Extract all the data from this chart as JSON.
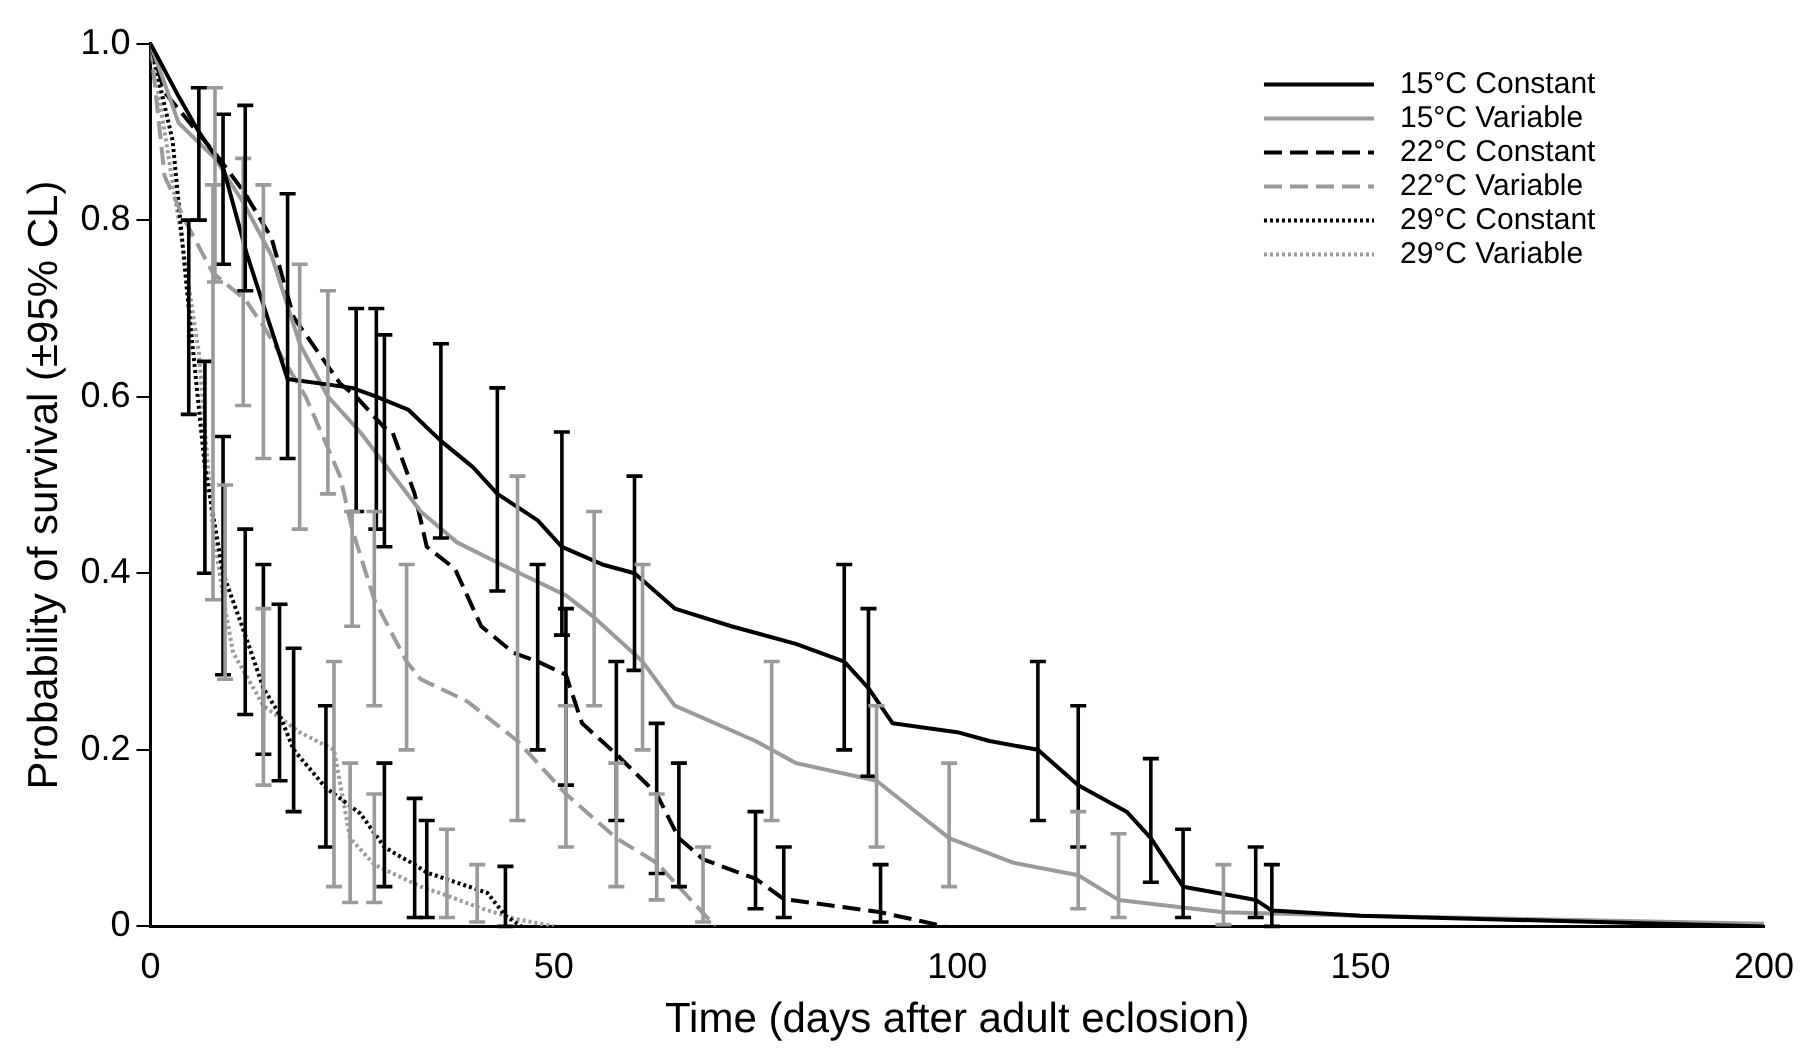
{
  "chart_data": {
    "type": "line",
    "xlabel": "Time (days after adult eclosion)",
    "ylabel": "Probability of survival (±95% CL)",
    "xlim": [
      0,
      200
    ],
    "xticks": [
      0,
      50,
      100,
      150,
      200
    ],
    "ylim": [
      0,
      1
    ],
    "yticks": [
      0,
      0.2,
      0.4,
      0.6,
      0.8,
      {
        "value": 1,
        "label": "1.0"
      }
    ],
    "grid": false,
    "legend": "top right",
    "marker": "none",
    "series": [
      {
        "name": "15°C Constant",
        "color": "#000000",
        "line_style": "solid",
        "x": [
          0,
          3.5,
          6,
          9,
          12,
          17,
          25,
          28,
          32,
          36,
          40,
          43,
          48,
          51,
          56,
          60,
          65,
          72,
          80,
          86,
          89,
          92,
          100,
          104,
          110,
          115,
          118,
          121,
          124,
          128,
          134,
          137,
          139,
          150,
          200
        ],
        "values": [
          1,
          0.94,
          0.9,
          0.86,
          0.76,
          0.62,
          0.61,
          0.6,
          0.585,
          0.55,
          0.52,
          0.49,
          0.46,
          0.43,
          0.41,
          0.4,
          0.36,
          0.34,
          0.32,
          0.3,
          0.27,
          0.23,
          0.22,
          0.21,
          0.2,
          0.16,
          0.145,
          0.13,
          0.1,
          0.045,
          0.035,
          0.03,
          0.018,
          0.012,
          0
        ],
        "errors": [
          null,
          null,
          [
            0.8,
            0.95
          ],
          [
            0.75,
            0.92
          ],
          null,
          [
            0.53,
            0.83
          ],
          null,
          [
            0.45,
            0.7
          ],
          null,
          [
            0.44,
            0.66
          ],
          null,
          [
            0.38,
            0.61
          ],
          null,
          [
            0.33,
            0.56
          ],
          null,
          [
            0.29,
            0.51
          ],
          null,
          null,
          null,
          [
            0.2,
            0.41
          ],
          [
            0.17,
            0.36
          ],
          null,
          null,
          null,
          [
            0.12,
            0.3
          ],
          [
            0.09,
            0.25
          ],
          null,
          null,
          [
            0.05,
            0.19
          ],
          [
            0.01,
            0.11
          ],
          null,
          [
            0.01,
            0.09
          ],
          [
            0,
            0.07
          ],
          null,
          null
        ]
      },
      {
        "name": "15°C Variable",
        "color": "#9a9a9a",
        "line_style": "solid",
        "x": [
          0,
          3.5,
          8,
          11.5,
          15,
          18.5,
          22,
          26,
          33.5,
          38,
          43.5,
          51.5,
          55,
          61,
          65,
          75,
          77,
          80,
          90,
          99,
          107,
          115,
          120,
          133,
          150,
          200
        ],
        "values": [
          1,
          0.91,
          0.87,
          0.82,
          0.76,
          0.66,
          0.6,
          0.56,
          0.47,
          0.435,
          0.41,
          0.375,
          0.35,
          0.3,
          0.25,
          0.21,
          0.2,
          0.185,
          0.165,
          0.1,
          0.072,
          0.058,
          0.03,
          0.016,
          0.012,
          0.003
        ],
        "errors": [
          null,
          null,
          [
            0.73,
            0.95
          ],
          [
            0.59,
            0.87
          ],
          null,
          [
            0.45,
            0.75
          ],
          [
            0.49,
            0.72
          ],
          null,
          null,
          null,
          null,
          null,
          [
            0.25,
            0.47
          ],
          [
            0.2,
            0.41
          ],
          null,
          null,
          [
            0.12,
            0.3
          ],
          null,
          [
            0.09,
            0.25
          ],
          [
            0.045,
            0.185
          ],
          null,
          [
            0.02,
            0.13
          ],
          [
            0.01,
            0.105
          ],
          [
            0.002,
            0.07
          ],
          null,
          null
        ]
      },
      {
        "name": "22°C Constant",
        "color": "#000000",
        "line_style": "dashed",
        "x": [
          0,
          1.75,
          8.5,
          11.75,
          15,
          17.75,
          23.5,
          25.5,
          29,
          30,
          32.75,
          34.25,
          37.75,
          41,
          45,
          48,
          51.5,
          53.5,
          57.75,
          62.75,
          65.5,
          68.5,
          75,
          78.5,
          90.5,
          98.5
        ],
        "values": [
          1,
          0.945,
          0.87,
          0.83,
          0.78,
          0.69,
          0.615,
          0.6,
          0.565,
          0.56,
          0.49,
          0.43,
          0.405,
          0.34,
          0.31,
          0.3,
          0.285,
          0.23,
          0.195,
          0.15,
          0.1,
          0.076,
          0.054,
          0.031,
          0.016,
          0
        ],
        "errors": [
          null,
          null,
          null,
          [
            0.72,
            0.93
          ],
          null,
          null,
          null,
          [
            0.47,
            0.7
          ],
          [
            0.43,
            0.67
          ],
          null,
          null,
          null,
          null,
          null,
          null,
          [
            0.2,
            0.41
          ],
          [
            0.16,
            0.36
          ],
          null,
          [
            0.12,
            0.3
          ],
          [
            0.06,
            0.23
          ],
          [
            0.045,
            0.185
          ],
          null,
          [
            0.02,
            0.13
          ],
          [
            0.01,
            0.09
          ],
          [
            0.005,
            0.07
          ],
          null
        ]
      },
      {
        "name": "22°C Variable",
        "color": "#9a9a9a",
        "line_style": "dashed",
        "x": [
          0,
          1.75,
          4.25,
          7.75,
          11.75,
          14,
          19.25,
          23.5,
          25,
          27.75,
          31.75,
          33.5,
          39.25,
          45.5,
          48.5,
          51.5,
          57.75,
          62.75,
          68.5,
          70
        ],
        "values": [
          1,
          0.85,
          0.8,
          0.74,
          0.71,
          0.68,
          0.6,
          0.51,
          0.45,
          0.37,
          0.3,
          0.28,
          0.255,
          0.21,
          0.18,
          0.15,
          0.1,
          0.072,
          0.015,
          0
        ],
        "errors": [
          null,
          null,
          null,
          null,
          null,
          [
            0.53,
            0.84
          ],
          null,
          null,
          [
            0.34,
            0.47
          ],
          [
            0.25,
            0.47
          ],
          [
            0.2,
            0.41
          ],
          null,
          null,
          [
            0.12,
            0.51
          ],
          null,
          [
            0.09,
            0.25
          ],
          [
            0.045,
            0.185
          ],
          [
            0.03,
            0.15
          ],
          [
            0.005,
            0.09
          ],
          null
        ]
      },
      {
        "name": "29°C Constant",
        "color": "#000000",
        "line_style": "dotted",
        "x": [
          0,
          2.75,
          4.75,
          6.75,
          9,
          11.75,
          14,
          16,
          17.75,
          21.75,
          26,
          29,
          30.25,
          32.75,
          34.25,
          41.75,
          44,
          46
        ],
        "values": [
          1,
          0.89,
          0.7,
          0.52,
          0.4,
          0.33,
          0.27,
          0.24,
          0.2,
          0.157,
          0.128,
          0.09,
          0.083,
          0.07,
          0.061,
          0.038,
          0.012,
          0
        ],
        "errors": [
          null,
          null,
          [
            0.58,
            0.8
          ],
          [
            0.4,
            0.64
          ],
          [
            0.285,
            0.555
          ],
          [
            0.24,
            0.45
          ],
          [
            0.195,
            0.41
          ],
          [
            0.165,
            0.365
          ],
          [
            0.13,
            0.315
          ],
          [
            0.09,
            0.25
          ],
          null,
          [
            0.045,
            0.185
          ],
          null,
          [
            0.01,
            0.145
          ],
          [
            0.01,
            0.12
          ],
          null,
          [
            0,
            0.068
          ],
          null
        ]
      },
      {
        "name": "29°C Variable",
        "color": "#9a9a9a",
        "line_style": "dotted",
        "x": [
          0,
          3.5,
          6,
          7.75,
          9.25,
          10.25,
          14,
          18.5,
          22.75,
          24.75,
          27.75,
          33.5,
          36.75,
          40.5,
          45,
          50
        ],
        "values": [
          1,
          0.8,
          0.65,
          0.45,
          0.36,
          0.31,
          0.25,
          0.22,
          0.2,
          0.1,
          0.07,
          0.045,
          0.035,
          0.022,
          0.009,
          0
        ],
        "errors": [
          null,
          null,
          null,
          [
            0.37,
            0.84
          ],
          [
            0.28,
            0.5
          ],
          null,
          [
            0.16,
            0.36
          ],
          null,
          [
            0.045,
            0.3
          ],
          [
            0.027,
            0.185
          ],
          [
            0.027,
            0.15
          ],
          null,
          [
            0.01,
            0.11
          ],
          [
            0.005,
            0.07
          ],
          null,
          null
        ]
      }
    ]
  }
}
